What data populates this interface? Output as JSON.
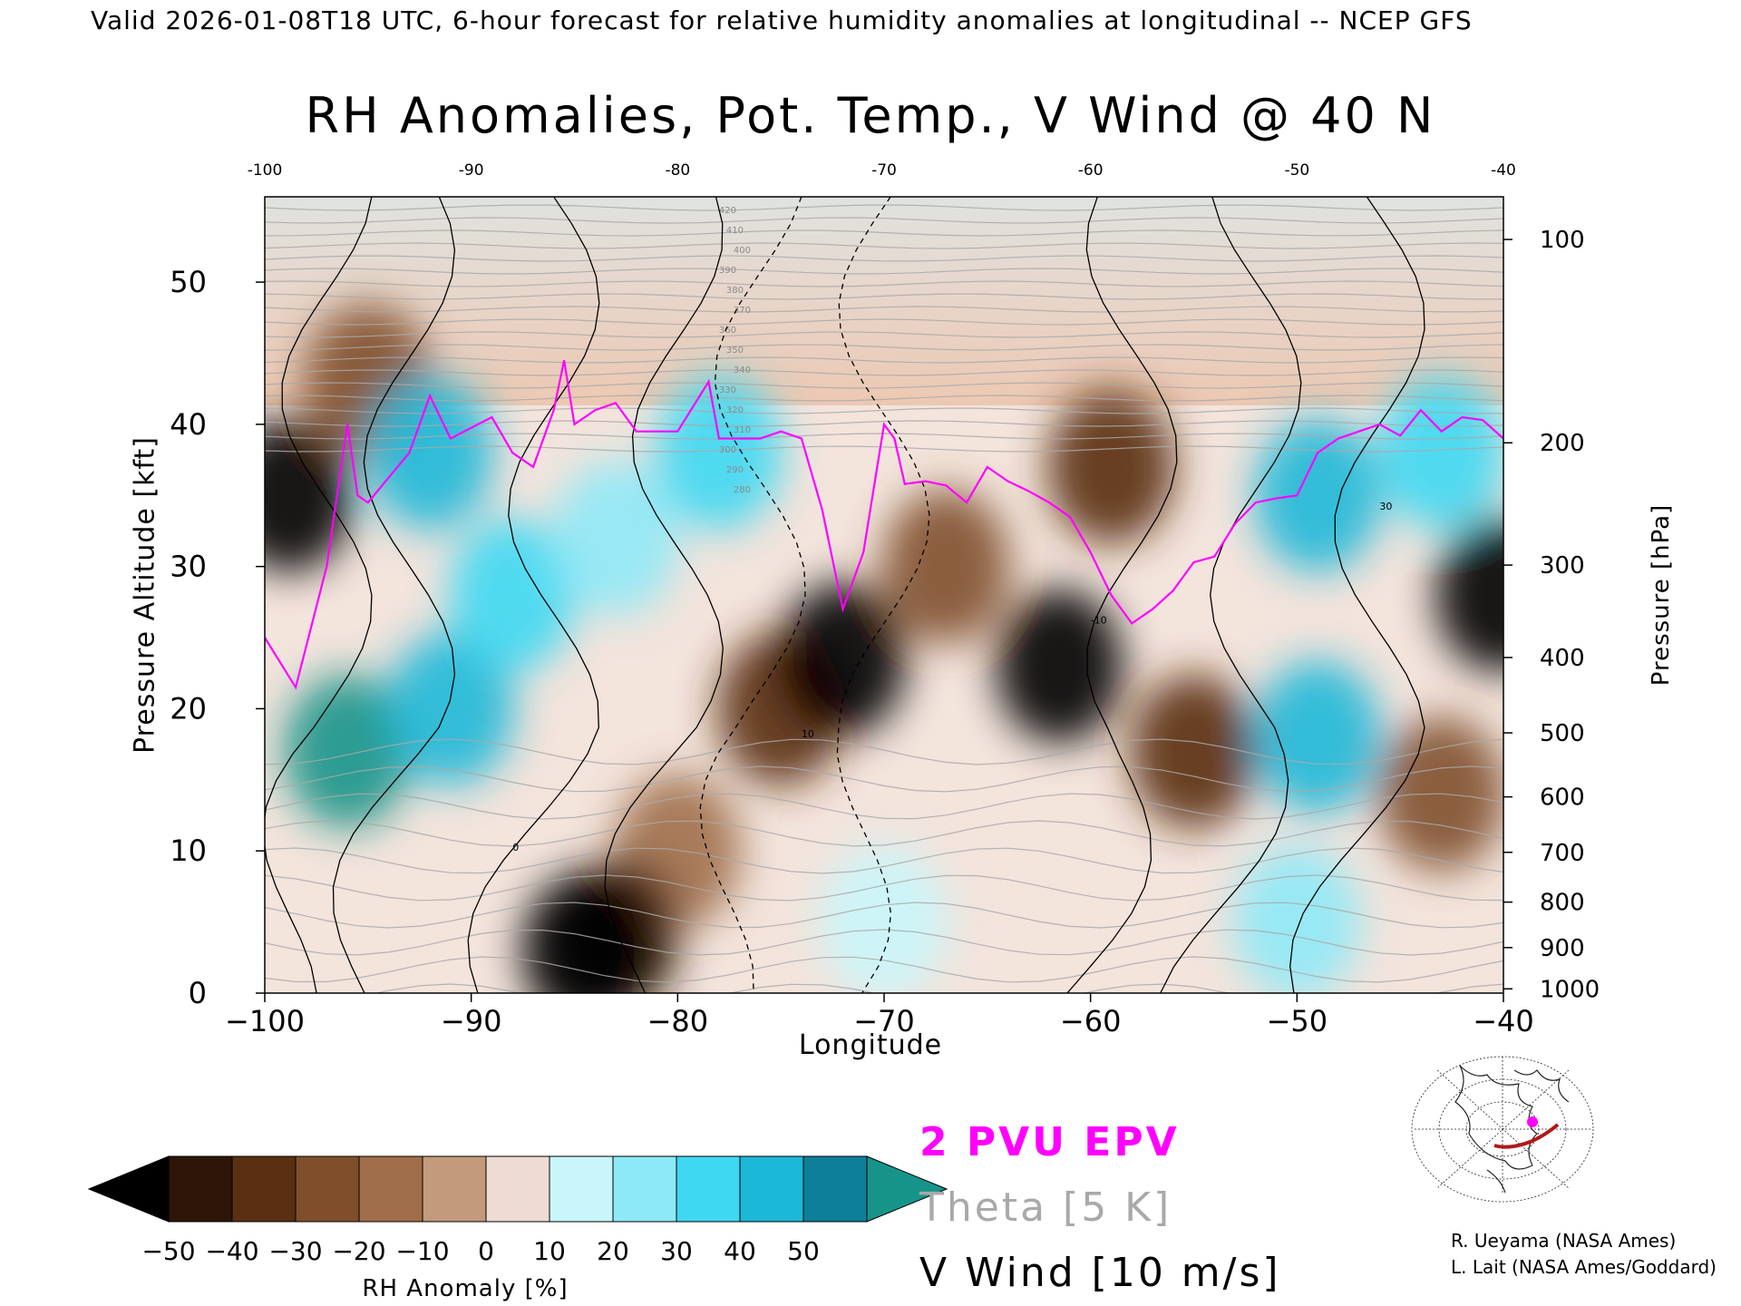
{
  "header": {
    "subtitle": "Valid 2026-01-08T18 UTC, 6-hour forecast for relative humidity anomalies at longitudinal -- NCEP GFS"
  },
  "chart_data": {
    "type": "heatmap",
    "title": "RH Anomalies, Pot. Temp., V Wind @ 40 N",
    "xlabel": "Longitude",
    "ylabel": "Pressure Altitude [kft]",
    "y2label": "Pressure [hPa]",
    "xlim": [
      -100,
      -40
    ],
    "ylim": [
      0,
      56
    ],
    "x_ticks": [
      -100,
      -90,
      -80,
      -70,
      -60,
      -50,
      -40
    ],
    "x_top_ticks": [
      -100,
      -90,
      -80,
      -70,
      -60,
      -50,
      -40
    ],
    "y_ticks": [
      0,
      10,
      20,
      30,
      40,
      50
    ],
    "pressure_ticks": [
      {
        "label": "100",
        "kft": 53
      },
      {
        "label": "200",
        "kft": 38.7
      },
      {
        "label": "300",
        "kft": 30.1
      },
      {
        "label": "400",
        "kft": 23.6
      },
      {
        "label": "500",
        "kft": 18.3
      },
      {
        "label": "600",
        "kft": 13.8
      },
      {
        "label": "700",
        "kft": 9.9
      },
      {
        "label": "800",
        "kft": 6.4
      },
      {
        "label": "900",
        "kft": 3.2
      },
      {
        "label": "1000",
        "kft": 0.3
      }
    ],
    "rh_anomaly_regions": [
      {
        "lon": -98.8,
        "kft": 35,
        "value": -55
      },
      {
        "lon": -95,
        "kft": 43,
        "value": -30
      },
      {
        "lon": -92,
        "kft": 38,
        "value": 45
      },
      {
        "lon": -96,
        "kft": 17,
        "value": 50
      },
      {
        "lon": -91,
        "kft": 20,
        "value": 40
      },
      {
        "lon": -88,
        "kft": 28,
        "value": 30
      },
      {
        "lon": -83,
        "kft": 32,
        "value": 20
      },
      {
        "lon": -78,
        "kft": 38,
        "value": 35
      },
      {
        "lon": -80,
        "kft": 10,
        "value": -20
      },
      {
        "lon": -83,
        "kft": 4,
        "value": -45
      },
      {
        "lon": -84.5,
        "kft": 3,
        "value": -55
      },
      {
        "lon": -75,
        "kft": 20,
        "value": -40
      },
      {
        "lon": -72,
        "kft": 23.5,
        "value": -55
      },
      {
        "lon": -67,
        "kft": 30,
        "value": -30
      },
      {
        "lon": -61.5,
        "kft": 23,
        "value": -55
      },
      {
        "lon": -59,
        "kft": 37,
        "value": -40
      },
      {
        "lon": -55,
        "kft": 17,
        "value": -35
      },
      {
        "lon": -49,
        "kft": 35,
        "value": 40
      },
      {
        "lon": -49,
        "kft": 18,
        "value": 40
      },
      {
        "lon": -43,
        "kft": 38,
        "value": 35
      },
      {
        "lon": -43,
        "kft": 14,
        "value": -30
      },
      {
        "lon": -40.2,
        "kft": 28,
        "value": -55
      },
      {
        "lon": -70,
        "kft": 5,
        "value": 15
      },
      {
        "lon": -50,
        "kft": 5,
        "value": 20
      }
    ],
    "theta_labels": [
      "420",
      "410",
      "400",
      "390",
      "380",
      "370",
      "360",
      "350",
      "340",
      "330",
      "320",
      "310",
      "300",
      "290",
      "280"
    ],
    "vwind_labels": [
      "0",
      "10",
      "-10",
      "30"
    ],
    "pvu_line": {
      "lon": [
        -100,
        -98.5,
        -97,
        -96,
        -95.5,
        -95,
        -93,
        -92,
        -91,
        -89,
        -88,
        -87,
        -86,
        -85.5,
        -85,
        -84,
        -83,
        -82,
        -80,
        -78.5,
        -78,
        -77,
        -76,
        -75,
        -74,
        -73,
        -72,
        -71,
        -70,
        -69.5,
        -69,
        -68,
        -67,
        -66,
        -65,
        -64,
        -63,
        -62,
        -61,
        -60,
        -59,
        -58,
        -57,
        -56,
        -55,
        -54,
        -53,
        -52,
        -51,
        -50,
        -49,
        -48,
        -47,
        -46,
        -45,
        -44,
        -43,
        -42,
        -41,
        -40
      ],
      "kft": [
        25,
        21.5,
        30,
        40,
        35,
        34.5,
        38,
        42,
        39,
        40.5,
        38,
        37,
        41,
        44.5,
        40,
        41,
        41.5,
        39.5,
        39.5,
        43,
        39,
        39,
        39,
        39.5,
        39,
        34,
        27,
        31,
        40,
        39,
        35.8,
        36,
        35.7,
        34.5,
        37,
        36,
        35.3,
        34.5,
        33.5,
        31,
        28,
        26,
        27,
        28.3,
        30.3,
        30.7,
        33,
        34.5,
        34.8,
        35,
        38,
        39,
        39.5,
        40,
        39.2,
        41,
        39.5,
        40.5,
        40.3,
        39
      ]
    },
    "colorbar": {
      "label": "RH Anomaly [%]",
      "ticks": [
        "−50",
        "−40",
        "−30",
        "−20",
        "−10",
        "0",
        "10",
        "20",
        "30",
        "40",
        "50"
      ],
      "colors": [
        "#2f1507",
        "#5a2f12",
        "#7f4f2c",
        "#a06e4b",
        "#c49a7d",
        "#eedbd2",
        "#c9f6fb",
        "#8ee9f7",
        "#3fd8f2",
        "#1cb8d8",
        "#0e7f9b"
      ],
      "under_color": "#000000",
      "over_color": "#17948a"
    },
    "legend": {
      "epv": "2 PVU EPV",
      "theta": "Theta [5 K]",
      "vwind": "V Wind [10 m/s]",
      "epv_color": "#ff00ff",
      "theta_color": "#a9a9a9",
      "vwind_color": "#000000"
    }
  },
  "credits": {
    "line1": "R. Ueyama (NASA Ames)",
    "line2": "L. Lait (NASA Ames/Goddard)"
  }
}
